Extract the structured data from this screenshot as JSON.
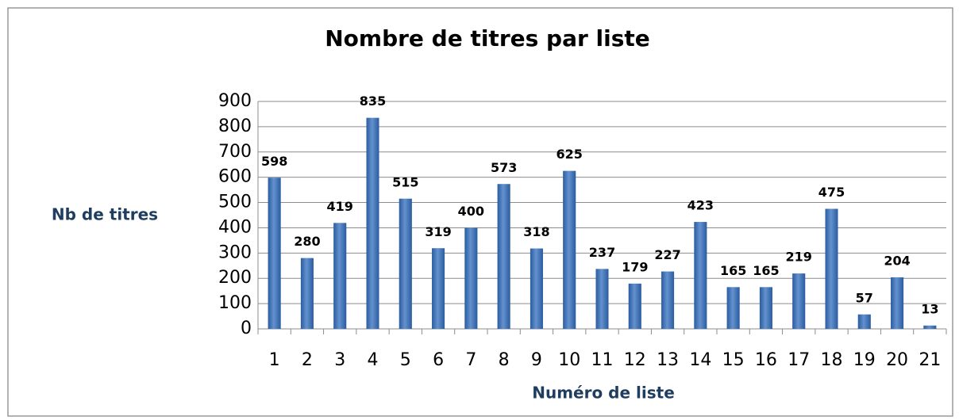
{
  "chart_data": {
    "type": "bar",
    "title": "Nombre de titres par liste",
    "x_label": "Numéro de liste",
    "y_label": "Nb de titres",
    "categories": [
      "1",
      "2",
      "3",
      "4",
      "5",
      "6",
      "7",
      "8",
      "9",
      "10",
      "11",
      "12",
      "13",
      "14",
      "15",
      "16",
      "17",
      "18",
      "19",
      "20",
      "21"
    ],
    "values": [
      598,
      280,
      419,
      835,
      515,
      319,
      400,
      573,
      318,
      625,
      237,
      179,
      227,
      423,
      165,
      165,
      219,
      475,
      57,
      204,
      13
    ],
    "color": "#3a6fb8",
    "ylim": [
      0,
      900
    ],
    "yticks": [
      0,
      100,
      200,
      300,
      400,
      500,
      600,
      700,
      800,
      900
    ],
    "grid": true
  }
}
